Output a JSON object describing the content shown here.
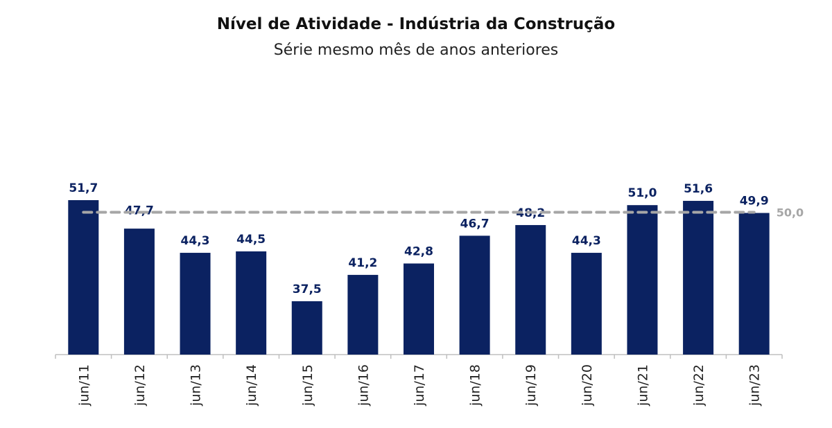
{
  "chart_data": {
    "type": "bar",
    "title": "Nível de Atividade - Indústria da Construção",
    "subtitle": "Série mesmo mês de anos anteriores",
    "categories": [
      "jun/11",
      "jun/12",
      "jun/13",
      "jun/14",
      "jun/15",
      "jun/16",
      "jun/17",
      "jun/18",
      "jun/19",
      "jun/20",
      "jun/21",
      "jun/22",
      "jun/23"
    ],
    "values": [
      51.7,
      47.7,
      44.3,
      44.5,
      37.5,
      41.2,
      42.8,
      46.7,
      48.2,
      44.3,
      51.0,
      51.6,
      49.9
    ],
    "value_labels": [
      "51,7",
      "47,7",
      "44,3",
      "44,5",
      "37,5",
      "41,2",
      "42,8",
      "46,7",
      "48,2",
      "44,3",
      "51,0",
      "51,6",
      "49,9"
    ],
    "reference_line": {
      "value": 50.0,
      "label": "50,0",
      "style": "dashed"
    },
    "ylim": [
      30,
      52.5
    ],
    "grid": false,
    "legend": false,
    "colors": {
      "bar": "#0b2261",
      "label": "#0b2261",
      "reference": "#a6a6a6",
      "axis": "#bfbfbf"
    }
  }
}
